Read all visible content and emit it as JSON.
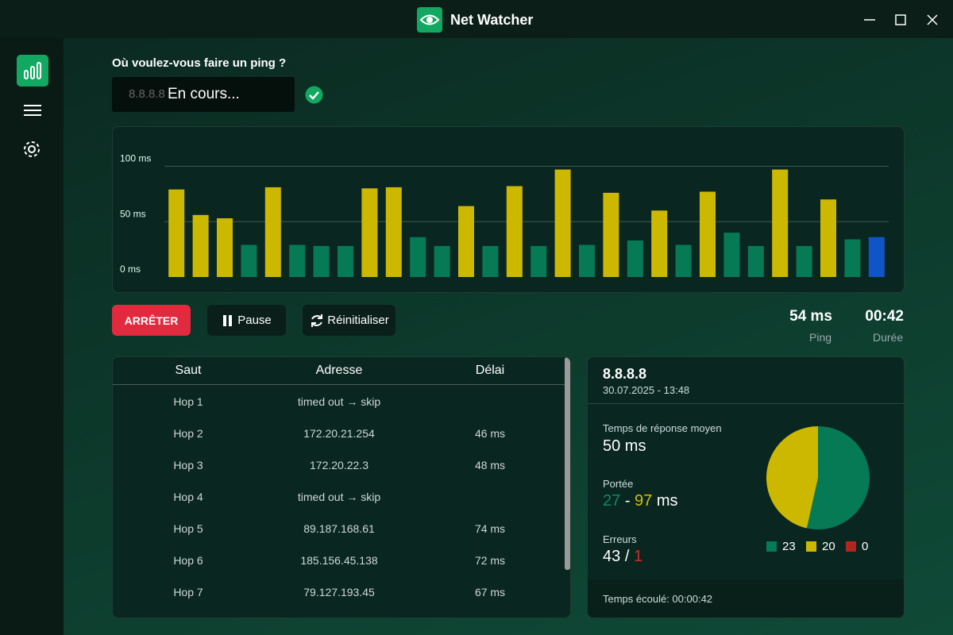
{
  "window": {
    "title": "Net Watcher"
  },
  "ping_form": {
    "prompt": "Où voulez-vous faire un ping ?",
    "input_value": "8.8.8.8",
    "status_overlay": "En cours..."
  },
  "chart": {
    "type": "bar",
    "values": [
      79,
      56,
      53,
      29,
      81,
      29,
      28,
      28,
      80,
      81,
      36,
      28,
      64,
      28,
      82,
      28,
      97,
      29,
      76,
      33,
      60,
      29,
      77,
      40,
      28,
      97,
      28,
      70,
      34,
      36
    ],
    "colors": [
      "#cdb800",
      "#cdb800",
      "#cdb800",
      "#067a55",
      "#cdb800",
      "#067a55",
      "#067a55",
      "#067a55",
      "#cdb800",
      "#cdb800",
      "#067a55",
      "#067a55",
      "#cdb800",
      "#067a55",
      "#cdb800",
      "#067a55",
      "#cdb800",
      "#067a55",
      "#cdb800",
      "#067a55",
      "#cdb800",
      "#067a55",
      "#cdb800",
      "#067a55",
      "#067a55",
      "#cdb800",
      "#067a55",
      "#cdb800",
      "#067a55",
      "#0f55c8"
    ],
    "ylim": [
      0,
      106
    ],
    "yticks": [
      {
        "value": 0,
        "label": "0 ms"
      },
      {
        "value": 50,
        "label": "50 ms"
      },
      {
        "value": 100,
        "label": "100 ms"
      }
    ],
    "grid": true
  },
  "controls": {
    "stop": "ARRÊTER",
    "pause": "Pause",
    "reset": "Réinitialiser"
  },
  "stats": {
    "ping_value": "54 ms",
    "ping_label": "Ping",
    "duration_value": "00:42",
    "duration_label": "Durée"
  },
  "table": {
    "headers": [
      "Saut",
      "Adresse",
      "Délai"
    ],
    "rows": [
      {
        "hop": "Hop 1",
        "address": "timed out → skip"
      },
      {
        "hop": "Hop 2",
        "address": "172.20.21.254",
        "delay": "46 ms"
      },
      {
        "hop": "Hop 3",
        "address": "172.20.22.3",
        "delay": "48 ms"
      },
      {
        "hop": "Hop 4",
        "address": "timed out → skip"
      },
      {
        "hop": "Hop 5",
        "address": "89.187.168.61",
        "delay": "74 ms"
      },
      {
        "hop": "Hop 6",
        "address": "185.156.45.138",
        "delay": "72 ms"
      },
      {
        "hop": "Hop 7",
        "address": "79.127.193.45",
        "delay": "67 ms"
      }
    ]
  },
  "summary": {
    "host": "8.8.8.8",
    "datetime": "30.07.2025 - 13:48",
    "avg_label": "Temps de réponse moyen",
    "avg_value": "50 ms",
    "range_label": "Portée",
    "range_min": "27",
    "range_sep": "-",
    "range_max": "97",
    "range_unit": "ms",
    "errors_label": "Erreurs",
    "errors_total": "43",
    "errors_sep": "/",
    "errors_count": "1",
    "pie": {
      "type": "pie",
      "values": [
        23,
        20,
        0
      ],
      "colors": [
        "#067a55",
        "#cdb800",
        "#b3261e"
      ]
    },
    "footer": "Temps écoulé: 00:00:42"
  }
}
